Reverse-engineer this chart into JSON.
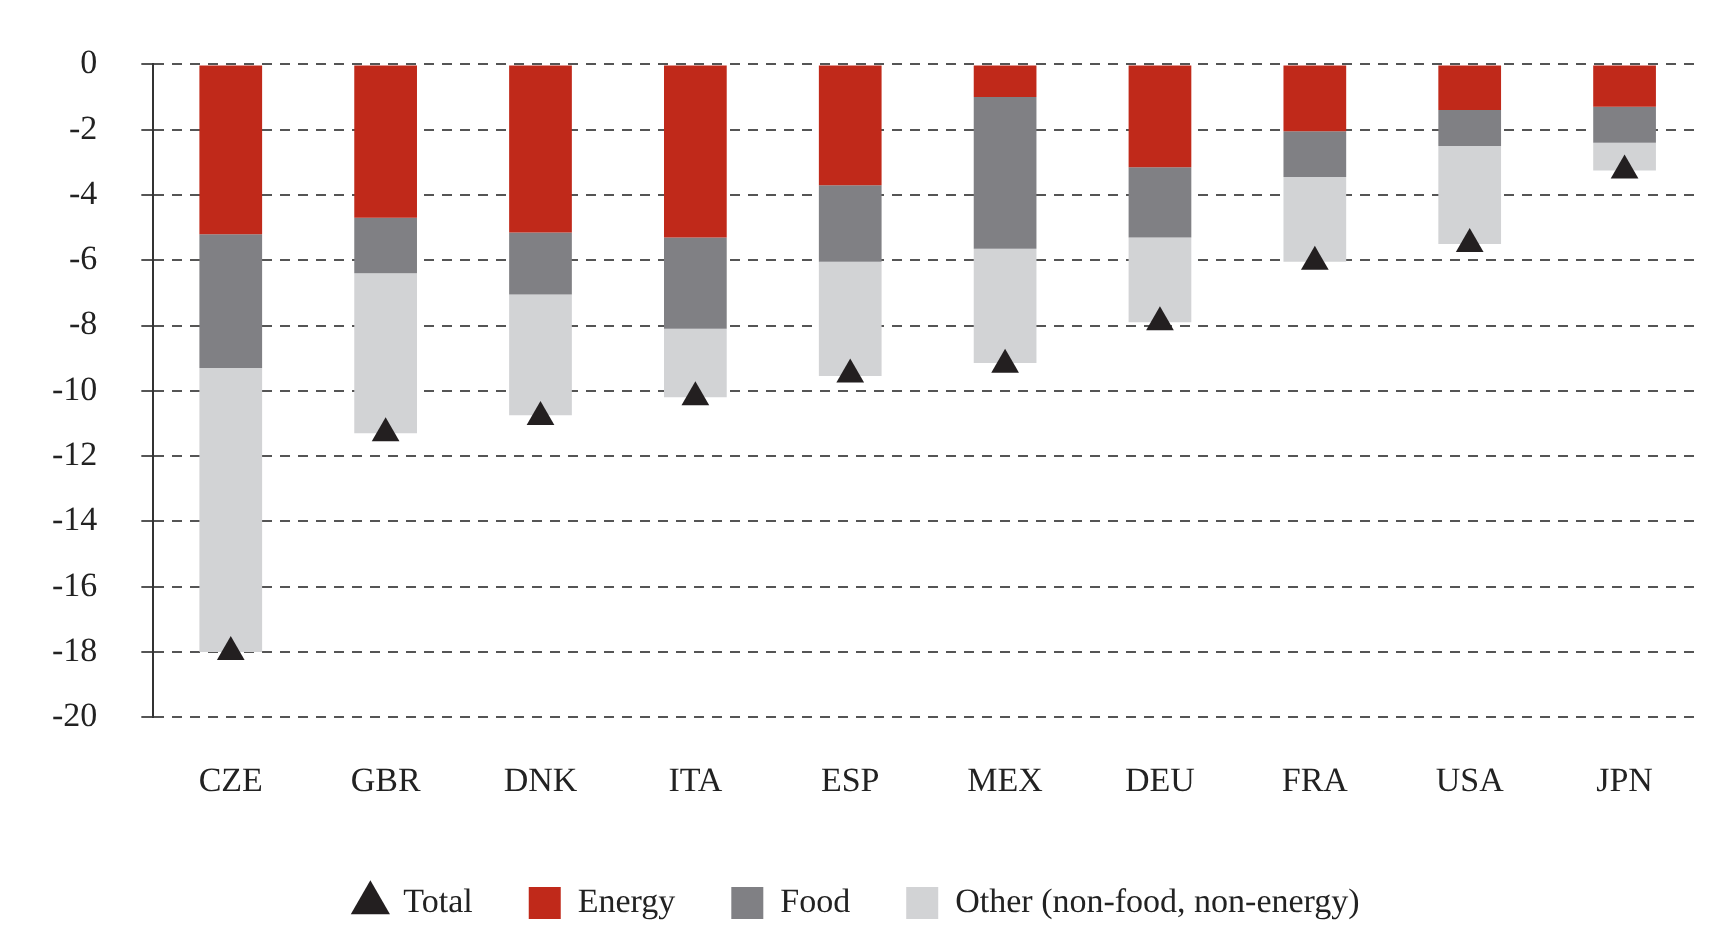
{
  "chart_data": {
    "type": "bar",
    "stacked": true,
    "categories": [
      "CZE",
      "GBR",
      "DNK",
      "ITA",
      "ESP",
      "MEX",
      "DEU",
      "FRA",
      "USA",
      "JPN"
    ],
    "series": [
      {
        "name": "Energy",
        "color": "#c0291a",
        "values": [
          -5.2,
          -4.7,
          -5.15,
          -5.3,
          -3.7,
          -1.0,
          -3.15,
          -2.05,
          -1.4,
          -1.3
        ]
      },
      {
        "name": "Food",
        "color": "#808084",
        "values": [
          -4.1,
          -1.7,
          -1.9,
          -2.8,
          -2.35,
          -4.65,
          -2.15,
          -1.4,
          -1.1,
          -1.1
        ]
      },
      {
        "name": "Other (non-food, non-energy)",
        "color": "#d2d3d5",
        "values": [
          -8.7,
          -4.9,
          -3.7,
          -2.1,
          -3.5,
          -3.5,
          -2.6,
          -2.6,
          -3.0,
          -0.85
        ]
      },
      {
        "name": "Total",
        "type": "scatter",
        "marker": "triangle",
        "color": "#231f20",
        "x": [
          "CZE",
          "GBR",
          "DNK",
          "ITA",
          "ESP",
          "MEX",
          "DEU",
          "FRA",
          "USA",
          "JPN"
        ],
        "values": [
          -18.0,
          -11.3,
          -10.8,
          -10.2,
          -9.5,
          -9.2,
          -7.9,
          -6.05,
          -5.5,
          -3.25
        ]
      }
    ],
    "ylim": [
      -20,
      0
    ],
    "yticks": [
      -20,
      -18,
      -16,
      -14,
      -12,
      -10,
      -8,
      -6,
      -4,
      -2,
      0
    ],
    "grid": "y",
    "line_style": "dashed",
    "legend": "bottom"
  }
}
